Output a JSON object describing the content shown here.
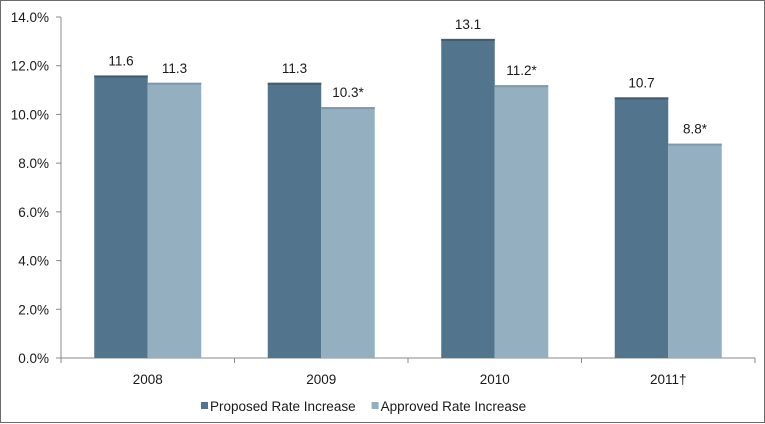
{
  "chart_data": {
    "type": "bar",
    "categories": [
      "2008",
      "2009",
      "2010",
      "2011†"
    ],
    "series": [
      {
        "name": "Proposed Rate Increase",
        "values": [
          11.6,
          11.3,
          13.1,
          10.7
        ],
        "labels": [
          "11.6",
          "11.3",
          "13.1",
          "10.7"
        ],
        "color": "#52758d"
      },
      {
        "name": "Approved Rate Increase",
        "values": [
          11.3,
          10.3,
          11.2,
          8.8
        ],
        "labels": [
          "11.3",
          "10.3*",
          "11.2*",
          "8.8*"
        ],
        "color": "#94afc0"
      }
    ],
    "ylim": [
      0,
      14
    ],
    "yticks": [
      "0.0%",
      "2.0%",
      "4.0%",
      "6.0%",
      "8.0%",
      "10.0%",
      "12.0%",
      "14.0%"
    ],
    "ytick_values": [
      0,
      2,
      4,
      6,
      8,
      10,
      12,
      14
    ],
    "title": "",
    "xlabel": "",
    "ylabel": "",
    "grid": false,
    "legend_position": "bottom"
  }
}
